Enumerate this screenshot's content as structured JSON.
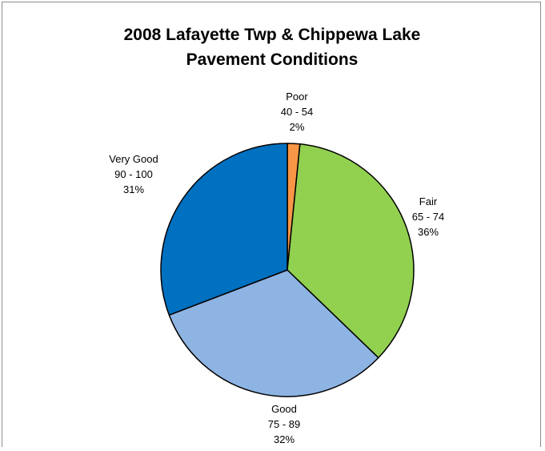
{
  "chart_data": {
    "type": "pie",
    "title_lines": [
      "2008 Lafayette Twp & Chippewa Lake",
      "Pavement Conditions"
    ],
    "slices": [
      {
        "category": "Poor",
        "range": "40 - 54",
        "percent_label": "2%",
        "value": 1.6,
        "color": "#f79646"
      },
      {
        "category": "Fair",
        "range": "65 - 74",
        "percent_label": "36%",
        "value": 35.6,
        "color": "#92d050"
      },
      {
        "category": "Good",
        "range": "75 - 89",
        "percent_label": "32%",
        "value": 32.0,
        "color": "#8eb4e3"
      },
      {
        "category": "Very Good",
        "range": "90 - 100",
        "percent_label": "31%",
        "value": 30.8,
        "color": "#0070c0"
      }
    ],
    "start_angle_deg": 0,
    "direction": "clockwise",
    "legend": "none"
  }
}
